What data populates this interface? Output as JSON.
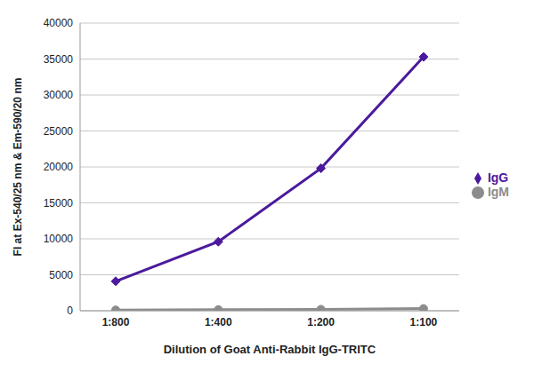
{
  "chart_data": {
    "type": "line",
    "x_label": "Dilution of Goat Anti-Rabbit IgG-TRITC",
    "y_label": "FI at Ex-540/25 nm & Em-590/20 nm",
    "categories": [
      "1:800",
      "1:400",
      "1:200",
      "1:100"
    ],
    "series": [
      {
        "name": "IgG",
        "color": "#4b1a9c",
        "marker": "diamond",
        "values": [
          4100,
          9600,
          19800,
          35300
        ]
      },
      {
        "name": "IgM",
        "color": "#8c8c8c",
        "marker": "circle",
        "values": [
          100,
          150,
          200,
          300
        ]
      }
    ],
    "ylim": [
      0,
      40000
    ],
    "yticks": [
      0,
      5000,
      10000,
      15000,
      20000,
      25000,
      30000,
      35000,
      40000
    ],
    "grid": true,
    "legend": "right"
  }
}
